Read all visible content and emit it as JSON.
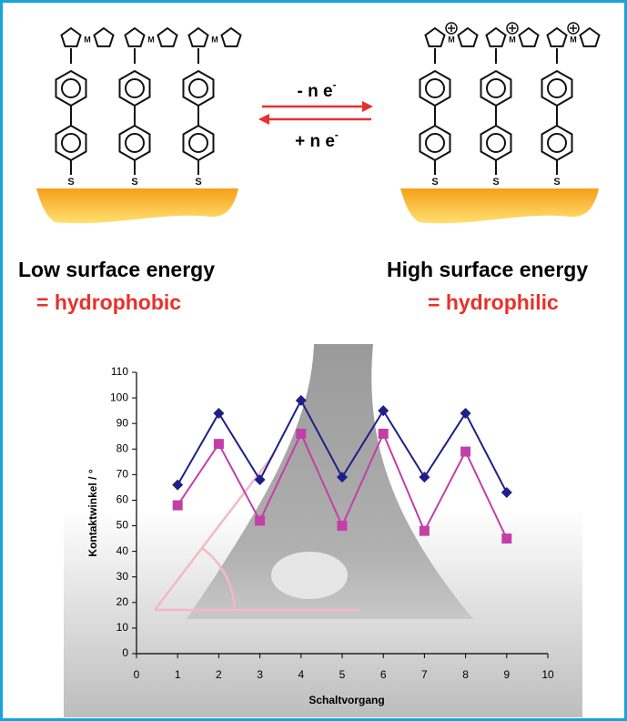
{
  "scheme": {
    "metal": "M",
    "sulfur": "S",
    "oxidation": {
      "text": "- n e",
      "charge": "-"
    },
    "reduction": {
      "text": "+ n e",
      "charge": "-"
    }
  },
  "labels": {
    "left": {
      "title": "Low surface energy",
      "subtitle": "= hydrophobic"
    },
    "right": {
      "title": "High surface energy",
      "subtitle": "= hydrophilic"
    }
  },
  "chart_data": {
    "type": "line",
    "x": [
      1,
      2,
      3,
      4,
      5,
      6,
      7,
      8,
      9
    ],
    "series": [
      {
        "color": "#1f1f8a",
        "marker": "diamond",
        "values": [
          66,
          94,
          68,
          99,
          69,
          95,
          69,
          94,
          63
        ]
      },
      {
        "color": "#c23fa8",
        "marker": "square",
        "values": [
          58,
          82,
          52,
          86,
          50,
          86,
          48,
          79,
          45
        ]
      }
    ],
    "xlim": [
      0,
      10
    ],
    "xticks": [
      0,
      1,
      2,
      3,
      4,
      5,
      6,
      7,
      8,
      9,
      10
    ],
    "ylim": [
      0,
      110
    ],
    "yticks": [
      0,
      10,
      20,
      30,
      40,
      50,
      60,
      70,
      80,
      90,
      100,
      110
    ],
    "xlabel": "Schaltvorgang",
    "ylabel": "Kontaktwinkel / °"
  }
}
